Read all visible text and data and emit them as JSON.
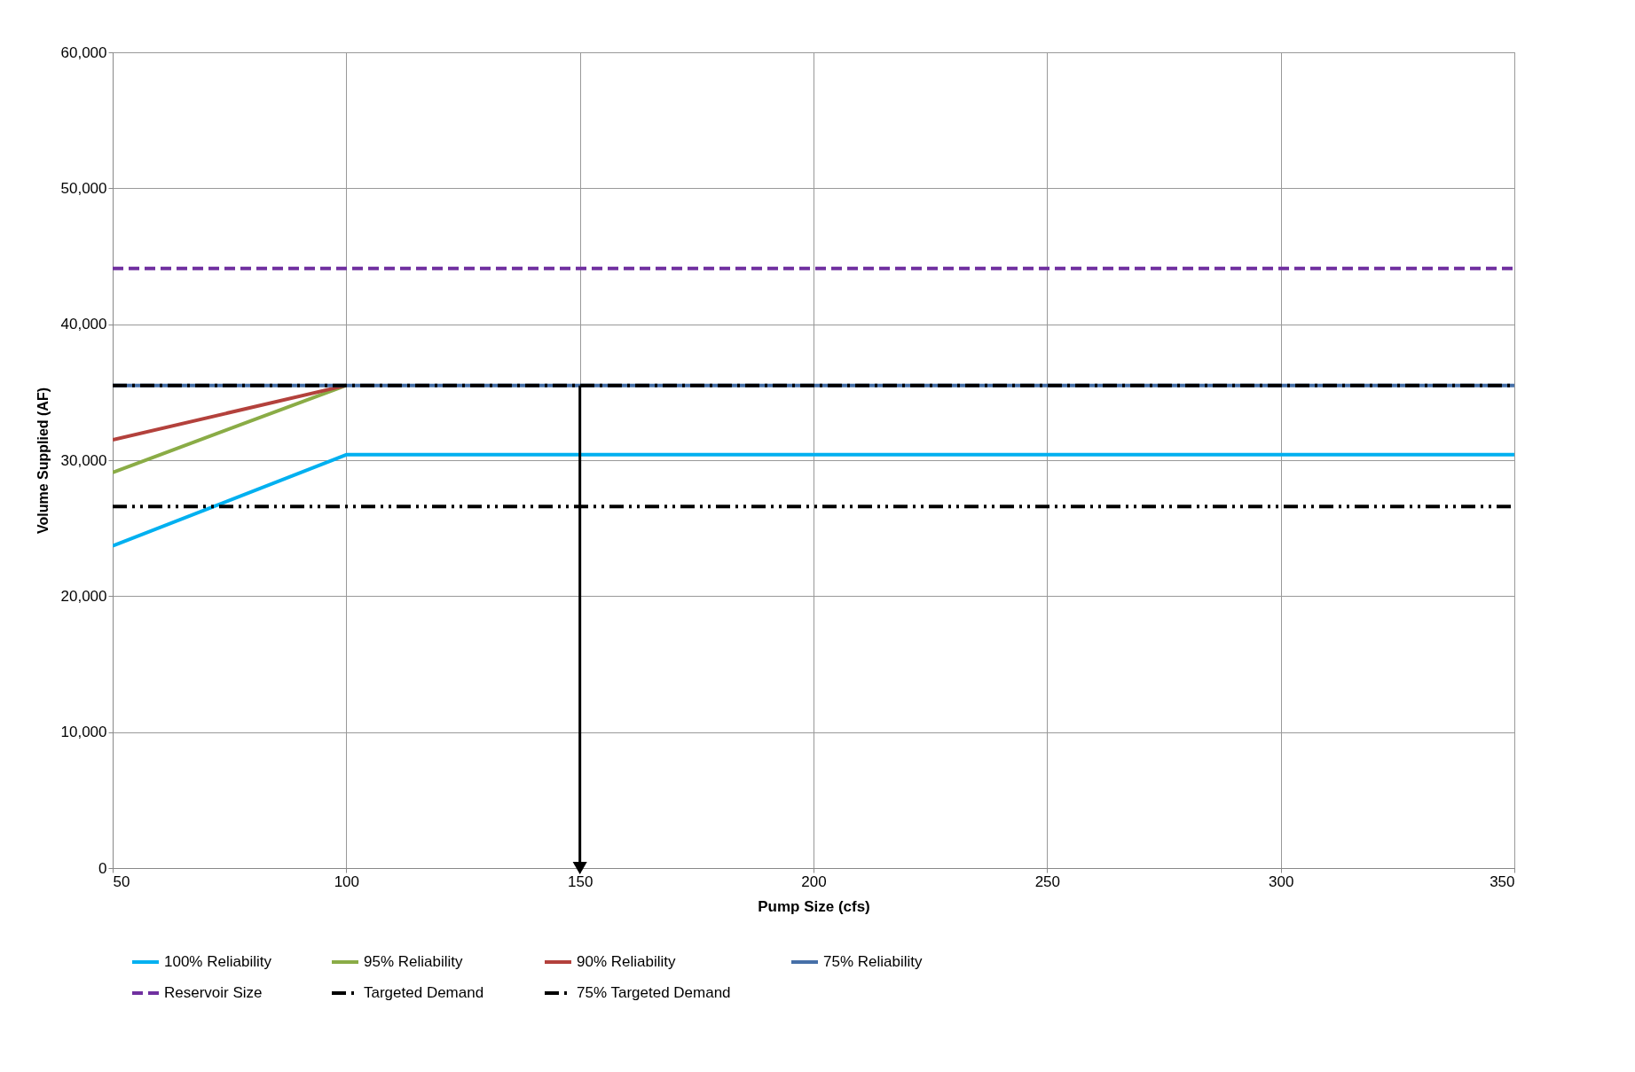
{
  "chart_data": {
    "type": "line",
    "xlabel": "Pump Size (cfs)",
    "ylabel": "Volume Supplied (AF)",
    "xlim": [
      50,
      350
    ],
    "xticks": [
      50,
      100,
      150,
      200,
      250,
      300,
      350
    ],
    "ylim": [
      0,
      60000
    ],
    "yticks": [
      0,
      {
        "value": 10000,
        "label": "10,000"
      },
      {
        "value": 20000,
        "label": "20,000"
      },
      {
        "value": 30000,
        "label": "30,000"
      },
      {
        "value": 40000,
        "label": "40,000"
      },
      {
        "value": 50000,
        "label": "50,000"
      },
      {
        "value": 60000,
        "label": "60,000"
      }
    ],
    "grid": true,
    "legend": "bottom",
    "series": [
      {
        "name": "100% Reliability",
        "color": "#00b0f0",
        "x": [
          50,
          100,
          350
        ],
        "values": [
          23700,
          30400,
          30400
        ],
        "line_style": "solid"
      },
      {
        "name": "95% Reliability",
        "color": "#8aac46",
        "x": [
          50,
          100
        ],
        "values": [
          29100,
          35500
        ],
        "line_style": "solid"
      },
      {
        "name": "90% Reliability",
        "color": "#b3413c",
        "x": [
          50,
          100
        ],
        "values": [
          31500,
          35500
        ],
        "line_style": "solid"
      },
      {
        "name": "75% Reliability",
        "color": "#4670a8",
        "x": [
          50,
          100,
          350
        ],
        "values": [
          35500,
          35500,
          35500
        ],
        "line_style": "solid"
      },
      {
        "name": "Reservoir Size",
        "color": "#7030a0",
        "x": [
          50,
          350
        ],
        "values": [
          44100,
          44100
        ],
        "line_style": "dashed"
      },
      {
        "name": "Targeted Demand",
        "color": "#000000",
        "x": [
          50,
          350
        ],
        "values": [
          35500,
          35500
        ],
        "line_style": "dashdot"
      },
      {
        "name": "75% Targeted Demand",
        "color": "#000000",
        "x": [
          50,
          350
        ],
        "values": [
          26600,
          26600
        ],
        "line_style": "dashdotdot"
      },
      {
        "color": "#000000",
        "x": [
          150,
          150
        ],
        "values": [
          35500,
          0
        ],
        "line_style": "solid",
        "marker": "triangle"
      }
    ]
  }
}
